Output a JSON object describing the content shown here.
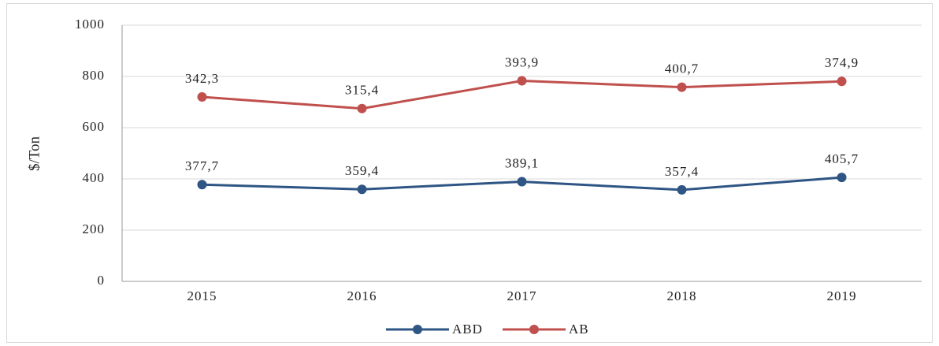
{
  "chart_data": {
    "type": "line",
    "stacked": true,
    "y_label": "$/Ton",
    "categories": [
      "2015",
      "2016",
      "2017",
      "2018",
      "2019"
    ],
    "series": [
      {
        "name": "ABD",
        "color": "#2e5584",
        "values": [
          377.7,
          359.4,
          389.1,
          357.4,
          405.7
        ],
        "value_labels": [
          "377,7",
          "359,4",
          "389,1",
          "357,4",
          "405,7"
        ]
      },
      {
        "name": "AB",
        "color": "#c0504d",
        "values": [
          342.3,
          315.4,
          393.9,
          400.7,
          374.9
        ],
        "value_labels": [
          "342,3",
          "315,4",
          "393,9",
          "400,7",
          "374,9"
        ]
      }
    ],
    "ylim": [
      0,
      1000
    ],
    "yticks": [
      0,
      200,
      400,
      600,
      800,
      1000
    ],
    "grid": true,
    "legend": "bottom"
  }
}
